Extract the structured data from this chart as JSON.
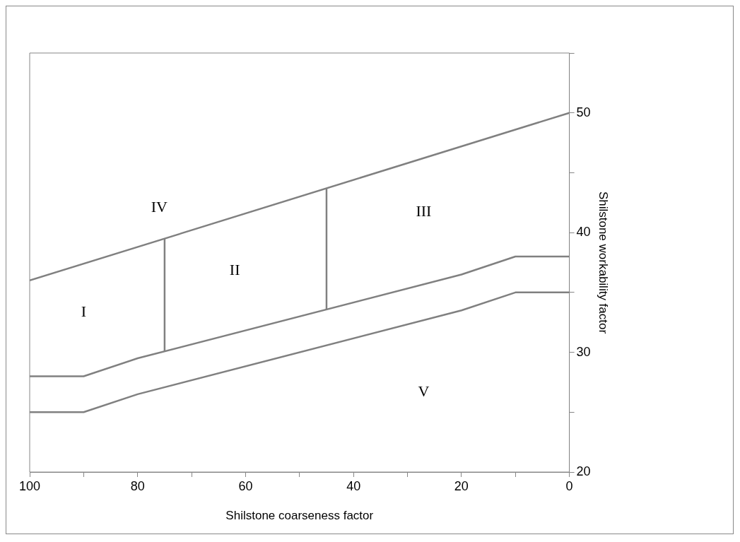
{
  "chart_data": {
    "type": "line",
    "xlabel": "Shilstone coarseness factor",
    "ylabel": "Shilstone workability factor",
    "xlim": [
      100,
      0
    ],
    "xticks": [
      100,
      {
        "value": 90,
        "label": null
      },
      80,
      {
        "value": 70,
        "label": null
      },
      60,
      {
        "value": 50,
        "label": null
      },
      40,
      {
        "value": 30,
        "label": null
      },
      20,
      {
        "value": 10,
        "label": null
      },
      0
    ],
    "ylim": [
      20,
      55
    ],
    "yticks": [
      20,
      {
        "value": 25,
        "label": null
      },
      30,
      {
        "value": 35,
        "label": null
      },
      40,
      {
        "value": 45,
        "label": null
      },
      50,
      {
        "value": 55,
        "label": null
      }
    ],
    "series": [
      {
        "color": "#808080",
        "x": [
          100,
          0
        ],
        "values": [
          36,
          50
        ]
      },
      {
        "color": "#808080",
        "x": [
          100,
          90,
          80,
          20,
          10,
          0
        ],
        "values": [
          28,
          28,
          29.5,
          36.5,
          38,
          38
        ]
      },
      {
        "color": "#808080",
        "x": [
          100,
          90,
          80,
          20,
          10,
          0
        ],
        "values": [
          25,
          25,
          26.5,
          33.5,
          35,
          35
        ]
      },
      {
        "color": "#808080",
        "x": [
          75,
          75
        ],
        "values": [
          30.1,
          39.5
        ]
      },
      {
        "color": "#808080",
        "x": [
          45,
          45
        ],
        "values": [
          33.6,
          43.7
        ]
      }
    ],
    "annotations": [
      "I",
      "II",
      "III",
      "IV",
      "V"
    ],
    "grid": false,
    "legend": false,
    "marker": "none",
    "line_style": "solid"
  }
}
